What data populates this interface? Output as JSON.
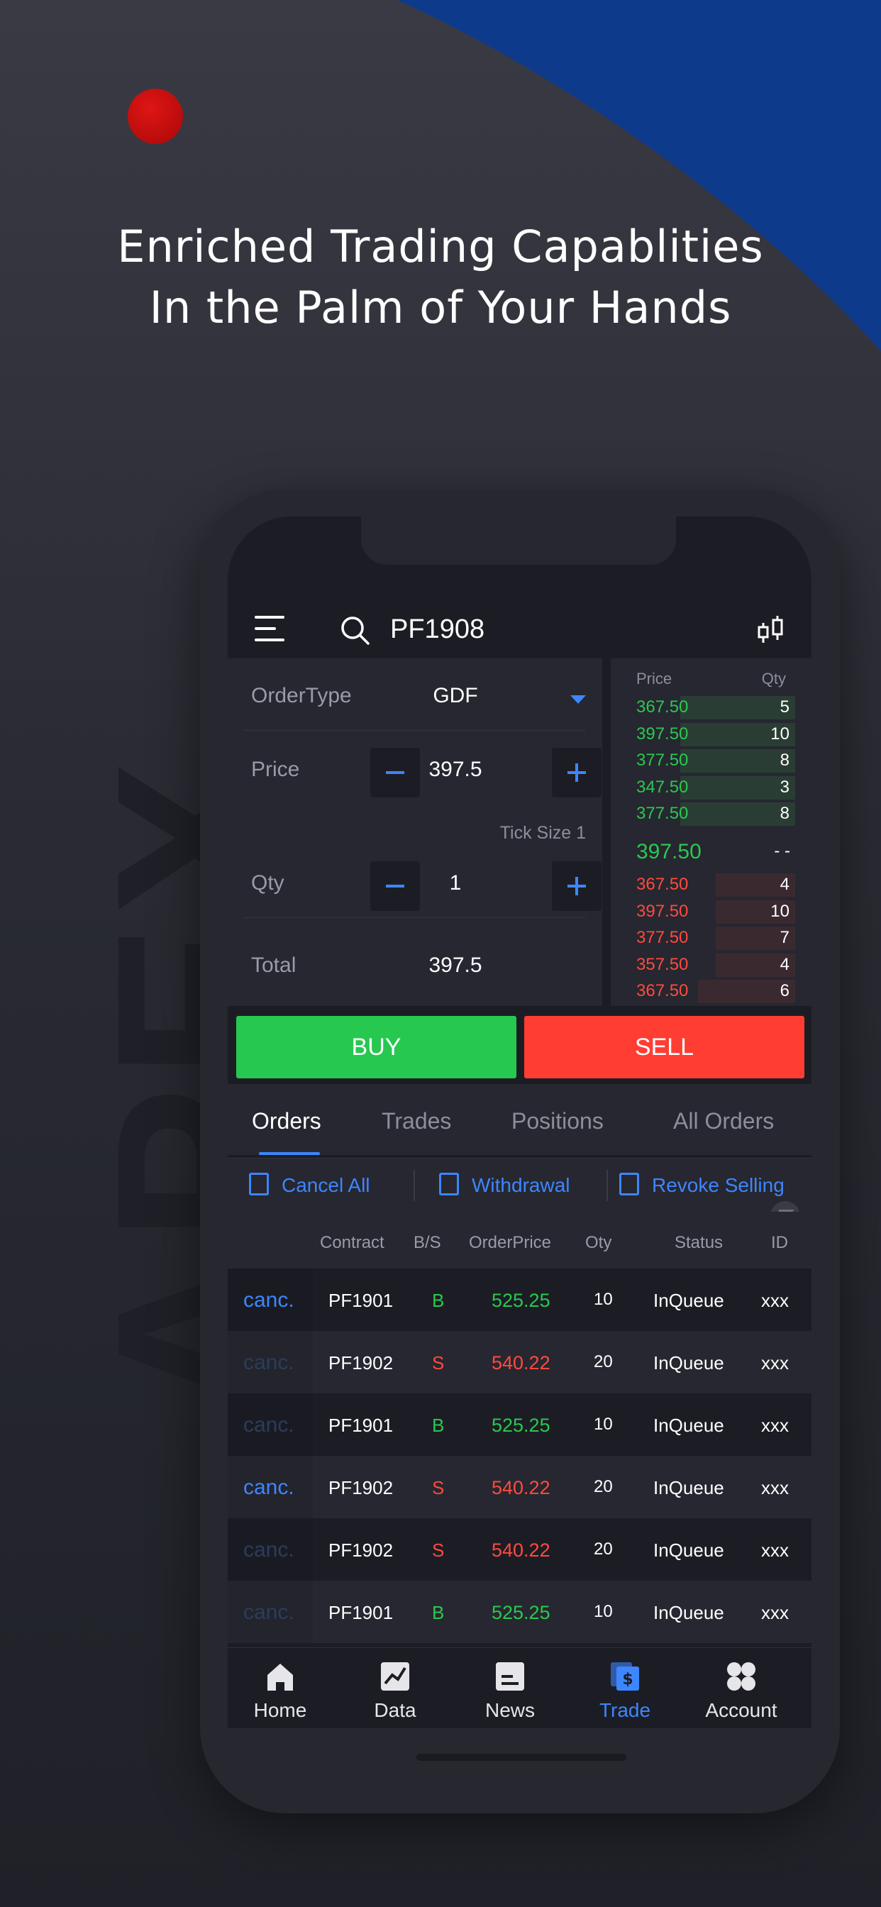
{
  "promo": {
    "headline_line1": "Enriched Trading Capablities",
    "headline_line2": "In the Palm of Your Hands",
    "watermark": "APEX"
  },
  "header": {
    "symbol": "PF1908",
    "menu_icon": "menu-icon",
    "search_icon": "search-icon",
    "chart_icon": "candlestick-chart-icon"
  },
  "order_form": {
    "order_type_label": "OrderType",
    "order_type_value": "GDF",
    "price_label": "Price",
    "price_value": "397.5",
    "tick_size": "Tick Size 1",
    "qty_label": "Qty",
    "qty_value": "1",
    "total_label": "Total",
    "total_value": "397.5"
  },
  "orderbook": {
    "price_header": "Price",
    "qty_header": "Qty",
    "bids": [
      {
        "price": "367.50",
        "qty": "5",
        "depth": 0.65
      },
      {
        "price": "397.50",
        "qty": "10",
        "depth": 0.65
      },
      {
        "price": "377.50",
        "qty": "8",
        "depth": 0.65
      },
      {
        "price": "347.50",
        "qty": "3",
        "depth": 0.65
      },
      {
        "price": "377.50",
        "qty": "8",
        "depth": 0.65
      }
    ],
    "last_price": "397.50",
    "last_qty": "- -",
    "asks": [
      {
        "price": "367.50",
        "qty": "4",
        "depth": 0.45
      },
      {
        "price": "397.50",
        "qty": "10",
        "depth": 0.45
      },
      {
        "price": "377.50",
        "qty": "7",
        "depth": 0.45
      },
      {
        "price": "357.50",
        "qty": "4",
        "depth": 0.45
      },
      {
        "price": "367.50",
        "qty": "6",
        "depth": 0.55
      }
    ]
  },
  "actions": {
    "buy": "BUY",
    "sell": "SELL"
  },
  "tabs": [
    "Orders",
    "Trades",
    "Positions",
    "All Orders"
  ],
  "toolbar": {
    "cancel_all": "Cancel All",
    "withdrawal": "Withdrawal",
    "revoke_selling": "Revoke Selling"
  },
  "table": {
    "headers": {
      "contract": "Contract",
      "bs": "B/S",
      "order_price": "OrderPrice",
      "qty": "Oty",
      "status": "Status",
      "id": "ID"
    },
    "rows": [
      {
        "cancel": "canc.",
        "contract": "PF1901",
        "bs": "B",
        "price": "525.25",
        "qty": "10",
        "status": "InQueue",
        "id": "xxx",
        "cancel_active": true
      },
      {
        "cancel": "canc.",
        "contract": "PF1902",
        "bs": "S",
        "price": "540.22",
        "qty": "20",
        "status": "InQueue",
        "id": "xxx",
        "cancel_active": false
      },
      {
        "cancel": "canc.",
        "contract": "PF1901",
        "bs": "B",
        "price": "525.25",
        "qty": "10",
        "status": "InQueue",
        "id": "xxx",
        "cancel_active": false
      },
      {
        "cancel": "canc.",
        "contract": "PF1902",
        "bs": "S",
        "price": "540.22",
        "qty": "20",
        "status": "InQueue",
        "id": "xxx",
        "cancel_active": true
      },
      {
        "cancel": "canc.",
        "contract": "PF1902",
        "bs": "S",
        "price": "540.22",
        "qty": "20",
        "status": "InQueue",
        "id": "xxx",
        "cancel_active": false
      },
      {
        "cancel": "canc.",
        "contract": "PF1901",
        "bs": "B",
        "price": "525.25",
        "qty": "10",
        "status": "InQueue",
        "id": "xxx",
        "cancel_active": false
      }
    ]
  },
  "nav": [
    {
      "label": "Home",
      "icon": "home-icon",
      "active": false
    },
    {
      "label": "Data",
      "icon": "chart-icon",
      "active": false
    },
    {
      "label": "News",
      "icon": "news-icon",
      "active": false
    },
    {
      "label": "Trade",
      "icon": "trade-icon",
      "active": true
    },
    {
      "label": "Account",
      "icon": "account-icon",
      "active": false
    }
  ],
  "colors": {
    "accent": "#3d86ff",
    "buy": "#27c850",
    "sell": "#ff3d33",
    "brand_blue": "#0e3a8c",
    "dot_red": "#d41010"
  }
}
